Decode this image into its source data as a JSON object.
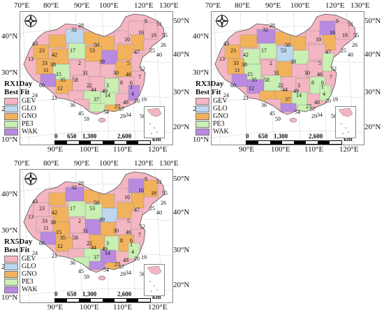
{
  "lon_labels_top": [
    "70°E",
    "80°E",
    "90°E",
    "100°E",
    "120°E",
    "130°E"
  ],
  "lon_labels_bottom": [
    "90°E",
    "100°E",
    "110°E",
    "120°E"
  ],
  "lat_labels_left": [
    "40°N",
    "30°N",
    "20°N",
    "10°N"
  ],
  "lat_labels_right": [
    "50°N",
    "40°N",
    "30°N",
    "20°N"
  ],
  "panels": [
    {
      "title": "RX1Day"
    },
    {
      "title": "RX3Day"
    },
    {
      "title": "RX5Day"
    }
  ],
  "legend": {
    "title": "Best Fit",
    "items": [
      {
        "label": "GEV",
        "color": "#f4b6c2"
      },
      {
        "label": "GLO",
        "color": "#bcd7ee"
      },
      {
        "label": "GNO",
        "color": "#f2b25c"
      },
      {
        "label": "PE3",
        "color": "#c9f0b3"
      },
      {
        "label": "WAK",
        "color": "#b98ae0"
      }
    ]
  },
  "scale_bar": {
    "ticks": [
      "0",
      "650",
      "1,300",
      "2,600"
    ],
    "unit": "km"
  },
  "region_numbers": [
    "9",
    "51",
    "55",
    "32",
    "28",
    "16",
    "18",
    "26",
    "40",
    "10",
    "43",
    "23",
    "42",
    "17",
    "53",
    "50",
    "47",
    "25",
    "13",
    "33",
    "38",
    "39",
    "2",
    "31",
    "15",
    "5",
    "11",
    "35",
    "58",
    "46",
    "30",
    "52",
    "7",
    "8",
    "60",
    "24",
    "22",
    "3",
    "6",
    "14",
    "21",
    "12",
    "36",
    "44",
    "49",
    "37",
    "48",
    "4",
    "19",
    "20",
    "57",
    "1",
    "29",
    "27",
    "34",
    "54",
    "59",
    "56",
    "45"
  ]
}
